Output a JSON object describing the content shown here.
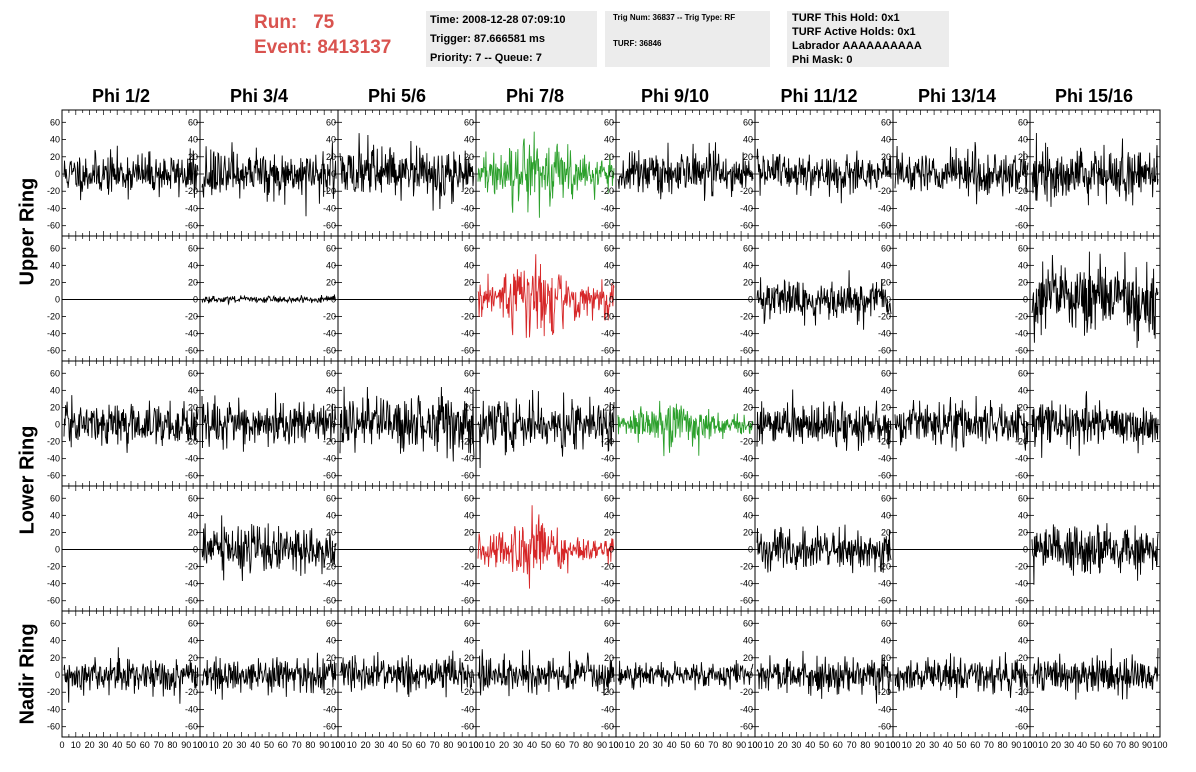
{
  "run": {
    "run_label": "Run:",
    "run_value": "75",
    "event_label": "Event:",
    "event_value": "8413137"
  },
  "info_time": {
    "time": "Time: 2008-12-28 07:09:10",
    "trigger": "Trigger: 87.666581 ms",
    "priority": "Priority: 7 -- Queue: 7"
  },
  "info_trig": {
    "line1": "Trig Num: 36837 -- Trig Type: RF",
    "line2": "TURF: 36846"
  },
  "info_turf": {
    "hold": "TURF This Hold: 0x1",
    "active": "TURF Active Holds: 0x1",
    "labrador": "Labrador AAAAAAAAAA",
    "mask": "Phi Mask: 0"
  },
  "phi_labels": [
    "Phi 1/2",
    "Phi 3/4",
    "Phi 5/6",
    "Phi 7/8",
    "Phi 9/10",
    "Phi 11/12",
    "Phi 13/14",
    "Phi 15/16"
  ],
  "ring_labels": {
    "upper": "Upper Ring",
    "lower": "Lower Ring",
    "nadir": "Nadir Ring"
  },
  "colors": {
    "normal": "#000000",
    "triggered_green": "#2ca02c",
    "triggered_red": "#d62728",
    "title_red": "#d9534f"
  },
  "chart_data": {
    "type": "line",
    "description": "Grid of 5 rows x 8 columns of waveform panels; each panel plots voltage vs sample index",
    "x_range": [
      0,
      100
    ],
    "y_range": [
      -65,
      65
    ],
    "y_ticks": [
      -60,
      -40,
      -20,
      0,
      20,
      40,
      60
    ],
    "x_tick_labels": [
      "0",
      "10",
      "20",
      "30",
      "40",
      "50",
      "60",
      "70",
      "80",
      "90",
      "100"
    ],
    "rows": [
      "Upper Ring (upper)",
      "Upper Ring (lower)",
      "Lower Ring (upper)",
      "Lower Ring (lower)",
      "Nadir Ring"
    ],
    "columns": [
      "Phi 1/2",
      "Phi 3/4",
      "Phi 5/6",
      "Phi 7/8",
      "Phi 9/10",
      "Phi 11/12",
      "Phi 13/14",
      "Phi 15/16"
    ],
    "panels": [
      [
        "noise:12",
        "noise:14",
        "noise:15",
        "green:16",
        "noise:12",
        "noise:12",
        "noise:13",
        "noise:15"
      ],
      [
        "flat",
        "noise:2",
        "flat",
        "red:18",
        "flat",
        "noise:12",
        "flat",
        "noise:20"
      ],
      [
        "noise:12",
        "noise:13",
        "noise:17",
        "noise:14",
        "green:10",
        "noise:12",
        "noise:13",
        "noise:12"
      ],
      [
        "flat",
        "noise:14",
        "flat",
        "red:14",
        "flat",
        "noise:13",
        "flat",
        "noise:14"
      ],
      [
        "noise:10",
        "noise:10",
        "noise:10",
        "noise:10",
        "noise:7",
        "noise:11",
        "noise:11",
        "noise:10"
      ]
    ]
  }
}
